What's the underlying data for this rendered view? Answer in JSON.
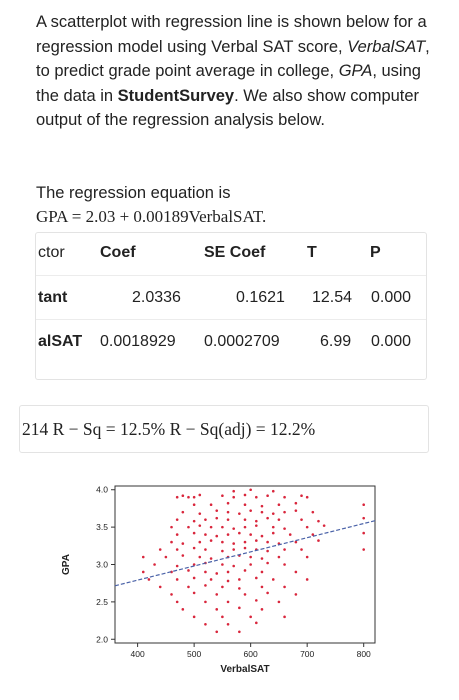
{
  "intro": {
    "t1": "A scatterplot with regression line is shown below for a regression model using Verbal SAT score, ",
    "t2": "VerbalSAT",
    "t3": ", to predict grade point average in college, ",
    "t4": "GPA",
    "t5": ", using the data in ",
    "t6": "StudentSurvey",
    "t7": ". We also show computer output of the regression analysis below."
  },
  "equation_label": "The regression equation is",
  "equation": "GPA = 2.03 + 0.00189VerbalSAT.",
  "table": {
    "headers": [
      "ctor",
      "Coef",
      "SE Coef",
      "T",
      "P"
    ],
    "rows": [
      [
        "tant",
        "2.0336",
        "0.1621",
        "12.54",
        "0.000"
      ],
      [
        "alSAT",
        "0.0018929",
        "0.0002709",
        "6.99",
        "0.000"
      ]
    ]
  },
  "stats_line": "214   R − Sq = 12.5%   R − Sq(adj) = 12.2%",
  "chart_data": {
    "type": "scatter",
    "xlabel": "VerbalSAT",
    "ylabel": "GPA",
    "xlim": [
      360,
      820
    ],
    "ylim": [
      1.95,
      4.05
    ],
    "xticks": [
      400,
      500,
      600,
      700,
      800
    ],
    "yticks": [
      "2.0",
      "2.5",
      "3.0",
      "3.5",
      "4.0"
    ],
    "regression": {
      "intercept": 2.0336,
      "slope": 0.0018929
    },
    "point_color": "#d9263c",
    "line_color": "#4a62a8",
    "points": [
      [
        470,
        3.9
      ],
      [
        480,
        3.92
      ],
      [
        490,
        3.9
      ],
      [
        500,
        3.9
      ],
      [
        510,
        3.93
      ],
      [
        550,
        3.92
      ],
      [
        570,
        3.9
      ],
      [
        590,
        3.93
      ],
      [
        610,
        3.9
      ],
      [
        630,
        3.92
      ],
      [
        660,
        3.9
      ],
      [
        690,
        3.92
      ],
      [
        700,
        3.9
      ],
      [
        570,
        3.98
      ],
      [
        600,
        4.0
      ],
      [
        640,
        3.98
      ],
      [
        500,
        3.8
      ],
      [
        530,
        3.8
      ],
      [
        560,
        3.82
      ],
      [
        590,
        3.8
      ],
      [
        620,
        3.78
      ],
      [
        650,
        3.8
      ],
      [
        680,
        3.82
      ],
      [
        800,
        3.8
      ],
      [
        480,
        3.7
      ],
      [
        510,
        3.68
      ],
      [
        540,
        3.72
      ],
      [
        560,
        3.7
      ],
      [
        580,
        3.68
      ],
      [
        600,
        3.72
      ],
      [
        620,
        3.7
      ],
      [
        640,
        3.68
      ],
      [
        660,
        3.7
      ],
      [
        680,
        3.72
      ],
      [
        710,
        3.7
      ],
      [
        470,
        3.6
      ],
      [
        500,
        3.58
      ],
      [
        520,
        3.6
      ],
      [
        540,
        3.62
      ],
      [
        560,
        3.6
      ],
      [
        590,
        3.6
      ],
      [
        610,
        3.58
      ],
      [
        630,
        3.62
      ],
      [
        650,
        3.6
      ],
      [
        690,
        3.6
      ],
      [
        720,
        3.58
      ],
      [
        800,
        3.62
      ],
      [
        460,
        3.5
      ],
      [
        490,
        3.5
      ],
      [
        510,
        3.52
      ],
      [
        530,
        3.5
      ],
      [
        550,
        3.5
      ],
      [
        570,
        3.48
      ],
      [
        590,
        3.5
      ],
      [
        610,
        3.52
      ],
      [
        640,
        3.5
      ],
      [
        660,
        3.48
      ],
      [
        700,
        3.5
      ],
      [
        730,
        3.52
      ],
      [
        470,
        3.4
      ],
      [
        500,
        3.42
      ],
      [
        520,
        3.4
      ],
      [
        540,
        3.38
      ],
      [
        560,
        3.4
      ],
      [
        580,
        3.42
      ],
      [
        600,
        3.4
      ],
      [
        620,
        3.38
      ],
      [
        640,
        3.42
      ],
      [
        670,
        3.4
      ],
      [
        710,
        3.4
      ],
      [
        800,
        3.42
      ],
      [
        460,
        3.3
      ],
      [
        480,
        3.28
      ],
      [
        510,
        3.3
      ],
      [
        530,
        3.32
      ],
      [
        550,
        3.3
      ],
      [
        570,
        3.28
      ],
      [
        590,
        3.3
      ],
      [
        610,
        3.32
      ],
      [
        630,
        3.3
      ],
      [
        650,
        3.28
      ],
      [
        680,
        3.3
      ],
      [
        720,
        3.32
      ],
      [
        440,
        3.2
      ],
      [
        470,
        3.2
      ],
      [
        500,
        3.22
      ],
      [
        520,
        3.2
      ],
      [
        550,
        3.18
      ],
      [
        570,
        3.2
      ],
      [
        590,
        3.22
      ],
      [
        610,
        3.2
      ],
      [
        630,
        3.18
      ],
      [
        660,
        3.2
      ],
      [
        690,
        3.2
      ],
      [
        800,
        3.2
      ],
      [
        410,
        3.1
      ],
      [
        450,
        3.1
      ],
      [
        480,
        3.12
      ],
      [
        510,
        3.1
      ],
      [
        530,
        3.08
      ],
      [
        560,
        3.1
      ],
      [
        580,
        3.12
      ],
      [
        600,
        3.1
      ],
      [
        620,
        3.08
      ],
      [
        650,
        3.1
      ],
      [
        700,
        3.1
      ],
      [
        430,
        3.0
      ],
      [
        470,
        2.98
      ],
      [
        500,
        3.0
      ],
      [
        520,
        3.02
      ],
      [
        550,
        3.0
      ],
      [
        570,
        2.98
      ],
      [
        600,
        3.0
      ],
      [
        630,
        3.02
      ],
      [
        660,
        3.0
      ],
      [
        410,
        2.9
      ],
      [
        460,
        2.9
      ],
      [
        490,
        2.92
      ],
      [
        520,
        2.9
      ],
      [
        540,
        2.88
      ],
      [
        560,
        2.9
      ],
      [
        590,
        2.92
      ],
      [
        620,
        2.9
      ],
      [
        680,
        2.9
      ],
      [
        420,
        2.8
      ],
      [
        470,
        2.8
      ],
      [
        500,
        2.82
      ],
      [
        530,
        2.8
      ],
      [
        560,
        2.78
      ],
      [
        580,
        2.8
      ],
      [
        610,
        2.82
      ],
      [
        640,
        2.8
      ],
      [
        700,
        2.8
      ],
      [
        440,
        2.7
      ],
      [
        490,
        2.7
      ],
      [
        520,
        2.72
      ],
      [
        550,
        2.7
      ],
      [
        580,
        2.68
      ],
      [
        620,
        2.7
      ],
      [
        660,
        2.7
      ],
      [
        460,
        2.6
      ],
      [
        500,
        2.62
      ],
      [
        540,
        2.6
      ],
      [
        590,
        2.6
      ],
      [
        630,
        2.62
      ],
      [
        680,
        2.6
      ],
      [
        470,
        2.5
      ],
      [
        520,
        2.5
      ],
      [
        560,
        2.5
      ],
      [
        610,
        2.52
      ],
      [
        650,
        2.5
      ],
      [
        480,
        2.4
      ],
      [
        540,
        2.4
      ],
      [
        580,
        2.42
      ],
      [
        620,
        2.4
      ],
      [
        500,
        2.3
      ],
      [
        550,
        2.3
      ],
      [
        600,
        2.3
      ],
      [
        660,
        2.3
      ],
      [
        520,
        2.2
      ],
      [
        560,
        2.2
      ],
      [
        610,
        2.22
      ],
      [
        540,
        2.1
      ],
      [
        580,
        2.1
      ]
    ]
  }
}
